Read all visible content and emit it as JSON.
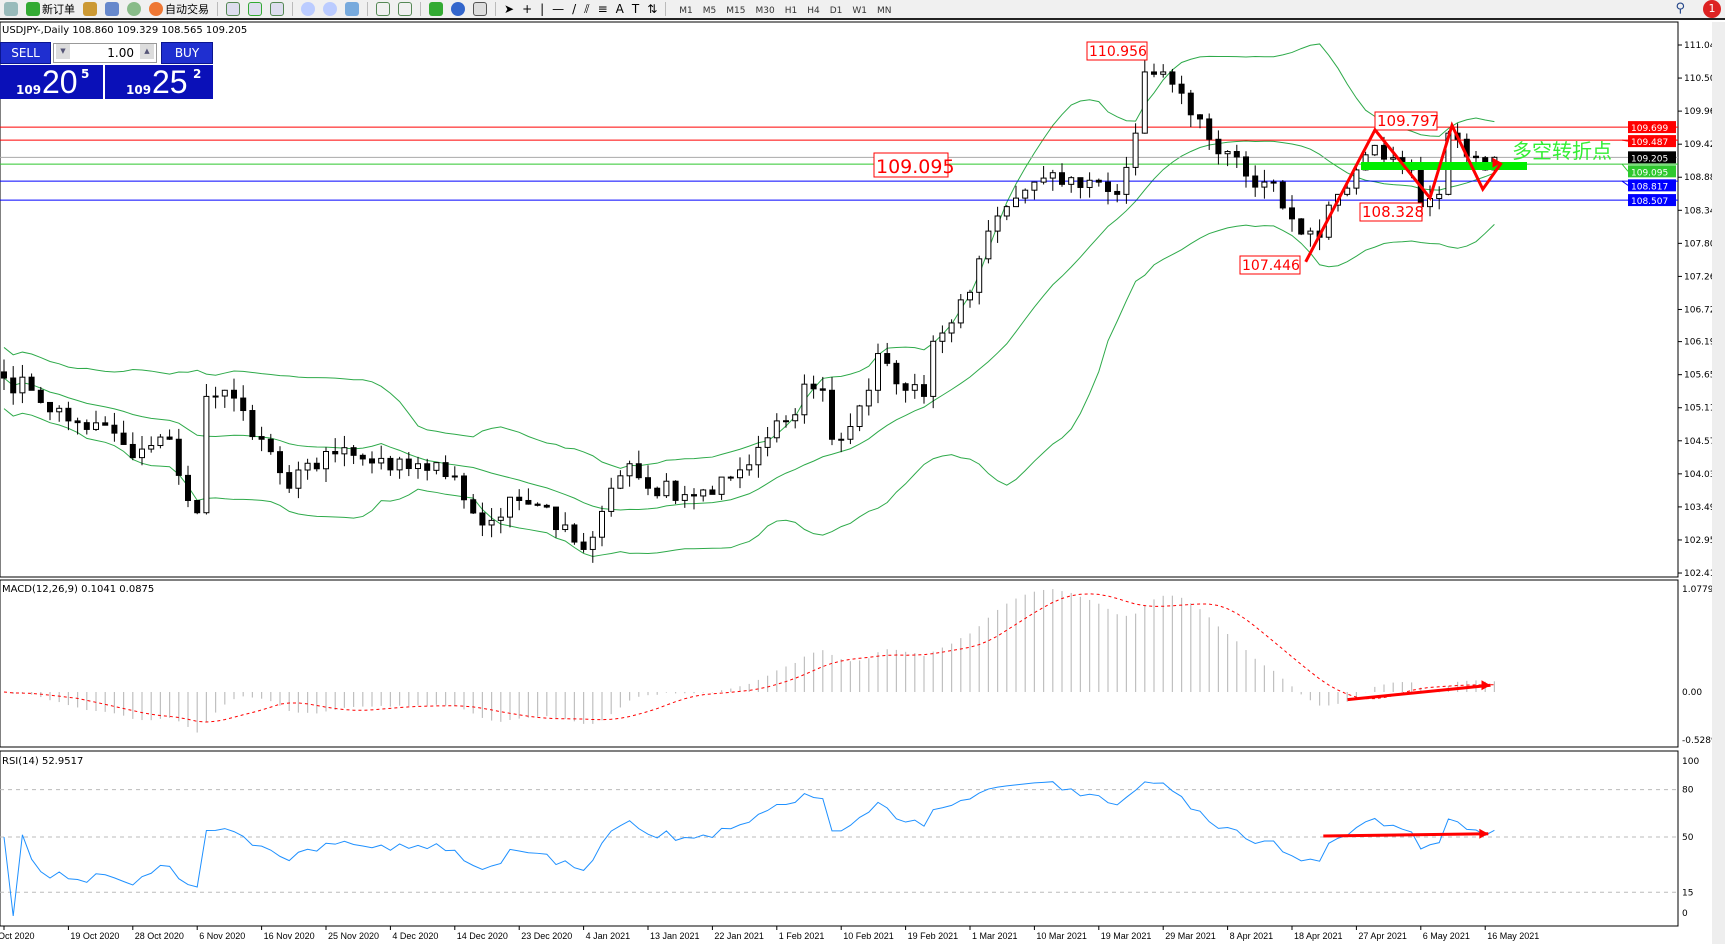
{
  "toolbar": {
    "new_order": "新订单",
    "auto_trading": "自动交易",
    "timeframes": [
      "M1",
      "M5",
      "M15",
      "M30",
      "H1",
      "H4",
      "D1",
      "W1",
      "MN"
    ],
    "notification_count": "1"
  },
  "chart_info": "USDJPY-,Daily  108.860 109.329 108.565 109.205",
  "one_click": {
    "sell": "SELL",
    "buy": "BUY",
    "lot": "1.00",
    "sell_price": {
      "small": "109",
      "big": "20",
      "pip": "5"
    },
    "buy_price": {
      "small": "109",
      "big": "25",
      "pip": "2"
    }
  },
  "colors": {
    "bull_body": "#ffffff",
    "bear_body": "#000000",
    "bands": "#2eaa4a",
    "resistance": "#ff0000",
    "support": "#0000ff",
    "pivot": "#00ee00",
    "macd_signal": "#ff0000",
    "macd_hist": "#c0c0c0",
    "rsi": "#1e90ff",
    "arrows": "#ff0000"
  },
  "chart_data": {
    "type": "candlestick",
    "symbol": "USDJPY-",
    "timeframe": "Daily",
    "price_axis": [
      "111.040",
      "110.500",
      "109.960",
      "109.420",
      "108.880",
      "108.340",
      "107.800",
      "107.260",
      "106.720",
      "106.195",
      "105.655",
      "105.115",
      "104.575",
      "104.035",
      "103.495",
      "102.955",
      "102.415"
    ],
    "price_range": [
      102.415,
      111.04
    ],
    "date_labels": [
      "Oct 2020",
      "19 Oct 2020",
      "28 Oct 2020",
      "6 Nov 2020",
      "16 Nov 2020",
      "25 Nov 2020",
      "4 Dec 2020",
      "14 Dec 2020",
      "23 Dec 2020",
      "4 Jan 2021",
      "13 Jan 2021",
      "22 Jan 2021",
      "1 Feb 2021",
      "10 Feb 2021",
      "19 Feb 2021",
      "1 Mar 2021",
      "10 Mar 2021",
      "19 Mar 2021",
      "29 Mar 2021",
      "8 Apr 2021",
      "18 Apr 2021",
      "27 Apr 2021",
      "6 May 2021",
      "16 May 2021"
    ],
    "approx_closes": [
      [
        "2020-10-08",
        105.6
      ],
      [
        "2020-10-13",
        105.4
      ],
      [
        "2020-10-19",
        104.9
      ],
      [
        "2020-10-26",
        104.7
      ],
      [
        "2020-10-28",
        104.3
      ],
      [
        "2020-11-03",
        104.6
      ],
      [
        "2020-11-05",
        103.6
      ],
      [
        "2020-11-06",
        103.4
      ],
      [
        "2020-11-09",
        105.3
      ],
      [
        "2020-11-11",
        105.4
      ],
      [
        "2020-11-16",
        104.6
      ],
      [
        "2020-11-19",
        103.8
      ],
      [
        "2020-11-25",
        104.4
      ],
      [
        "2020-12-04",
        104.1
      ],
      [
        "2020-12-09",
        104.2
      ],
      [
        "2020-12-14",
        104.0
      ],
      [
        "2020-12-17",
        103.2
      ],
      [
        "2020-12-23",
        103.6
      ],
      [
        "2020-12-30",
        103.2
      ],
      [
        "2021-01-04",
        102.8
      ],
      [
        "2021-01-05",
        103.0
      ],
      [
        "2021-01-07",
        103.8
      ],
      [
        "2021-01-11",
        104.2
      ],
      [
        "2021-01-13",
        103.8
      ],
      [
        "2021-01-22",
        103.7
      ],
      [
        "2021-01-27",
        104.1
      ],
      [
        "2021-02-01",
        104.9
      ],
      [
        "2021-02-03",
        105.0
      ],
      [
        "2021-02-04",
        105.5
      ],
      [
        "2021-02-08",
        105.4
      ],
      [
        "2021-02-09",
        104.6
      ],
      [
        "2021-02-10",
        104.6
      ],
      [
        "2021-02-15",
        105.4
      ],
      [
        "2021-02-16",
        106.0
      ],
      [
        "2021-02-19",
        105.4
      ],
      [
        "2021-02-23",
        105.3
      ],
      [
        "2021-02-24",
        106.2
      ],
      [
        "2021-02-26",
        106.5
      ],
      [
        "2021-03-01",
        107.0
      ],
      [
        "2021-03-03",
        108.0
      ],
      [
        "2021-03-05",
        108.4
      ],
      [
        "2021-03-10",
        108.8
      ],
      [
        "2021-03-19",
        108.8
      ],
      [
        "2021-03-23",
        108.6
      ],
      [
        "2021-03-25",
        109.6
      ],
      [
        "2021-03-26",
        110.6
      ],
      [
        "2021-03-29",
        110.6
      ],
      [
        "2021-03-30",
        110.4
      ],
      [
        "2021-04-01",
        109.9
      ],
      [
        "2021-04-05",
        109.5
      ],
      [
        "2021-04-08",
        109.3
      ],
      [
        "2021-04-12",
        108.9
      ],
      [
        "2021-04-15",
        108.8
      ],
      [
        "2021-04-18",
        108.2
      ],
      [
        "2021-04-20",
        108.0
      ],
      [
        "2021-04-21",
        107.9
      ],
      [
        "2021-04-23",
        108.6
      ],
      [
        "2021-04-27",
        109.0
      ],
      [
        "2021-04-29",
        109.4
      ],
      [
        "2021-05-03",
        109.2
      ],
      [
        "2021-05-05",
        109.0
      ],
      [
        "2021-05-06",
        108.4
      ],
      [
        "2021-05-10",
        108.6
      ],
      [
        "2021-05-11",
        109.6
      ],
      [
        "2021-05-12",
        109.5
      ],
      [
        "2021-05-14",
        109.2
      ],
      [
        "2021-05-16",
        109.0
      ],
      [
        "2021-05-17",
        109.205
      ]
    ],
    "annotations": {
      "high": "110.956",
      "level": "109.095",
      "peak": "109.797",
      "trough": "108.328",
      "low": "107.446",
      "pivot_text": "多空转折点"
    },
    "levels": [
      {
        "price": 109.699,
        "label": "109.699",
        "color": "#ff0000"
      },
      {
        "price": 109.487,
        "label": "109.487",
        "color": "#ff0000"
      },
      {
        "price": 109.205,
        "label": "109.205",
        "color": "#000000"
      },
      {
        "price": 109.095,
        "label": "109.095",
        "color": "#2ec82e"
      },
      {
        "price": 108.817,
        "label": "108.817",
        "color": "#0000ff"
      },
      {
        "price": 108.507,
        "label": "108.507",
        "color": "#0000ff"
      }
    ],
    "macd": {
      "label": "MACD(12,26,9) 0.1041 0.0875",
      "axis": [
        "1.0779",
        "0.00",
        "-0.5289"
      ],
      "range": [
        -0.5289,
        1.0779
      ]
    },
    "rsi": {
      "label": "RSI(14) 52.9517",
      "axis": [
        "100",
        "80",
        "50",
        "15",
        "0"
      ],
      "levels": [
        80,
        50,
        15
      ]
    }
  }
}
